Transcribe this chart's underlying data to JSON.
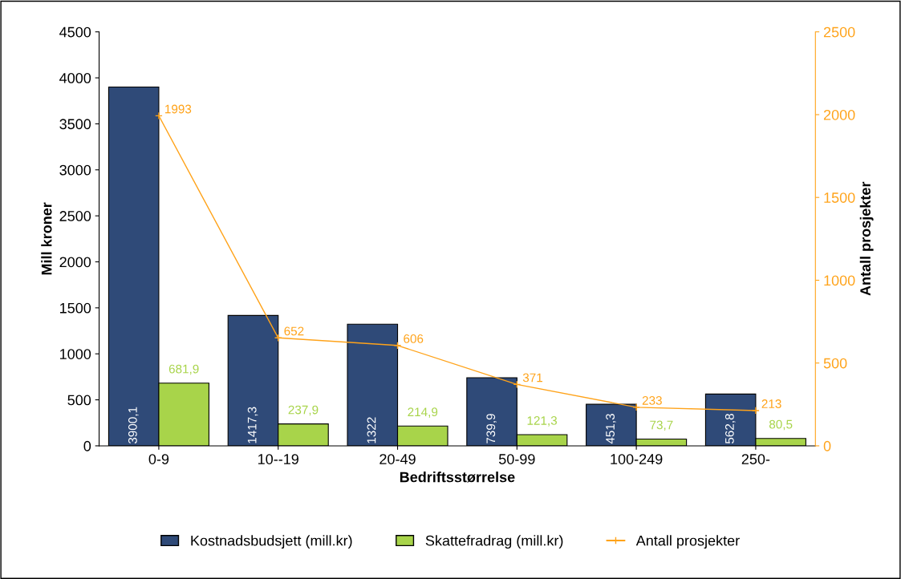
{
  "chart_data": {
    "type": "bar",
    "xlabel": "Bedriftsstørrelse",
    "ylabel": "Mill kroner",
    "y2label": "Antall prosjekter",
    "categories": [
      "0-9",
      "10--19",
      "20-49",
      "50-99",
      "100-249",
      "250-"
    ],
    "series": [
      {
        "name": "Kostnadsbudsjett (mill.kr)",
        "color": "#2f4a78",
        "values": [
          3900.1,
          1417.3,
          1322,
          739.9,
          451.3,
          562.8
        ],
        "value_labels": [
          "3900,1",
          "1417,3",
          "1322",
          "739,9",
          "451,3",
          "562,8"
        ]
      },
      {
        "name": "Skattefradrag (mill.kr)",
        "color": "#a8d44a",
        "values": [
          681.9,
          237.9,
          214.9,
          121.3,
          73.7,
          80.5
        ],
        "value_labels": [
          "681,9",
          "237,9",
          "214,9",
          "121,3",
          "73,7",
          "80,5"
        ]
      },
      {
        "name": "Antall prosjekter",
        "type": "line",
        "axis": "y2",
        "color": "#ffa31a",
        "marker": "cross",
        "values": [
          1993,
          652,
          606,
          371,
          233,
          213
        ],
        "value_labels": [
          "1993",
          "652",
          "606",
          "371",
          "233",
          "213"
        ]
      }
    ],
    "ylim": [
      0,
      4500
    ],
    "yticks": [
      0,
      500,
      1000,
      1500,
      2000,
      2500,
      3000,
      3500,
      4000,
      4500
    ],
    "y2lim": [
      0,
      2500
    ],
    "y2ticks": [
      0,
      500,
      1000,
      1500,
      2000,
      2500
    ],
    "grid": false,
    "legend": "bottom"
  }
}
